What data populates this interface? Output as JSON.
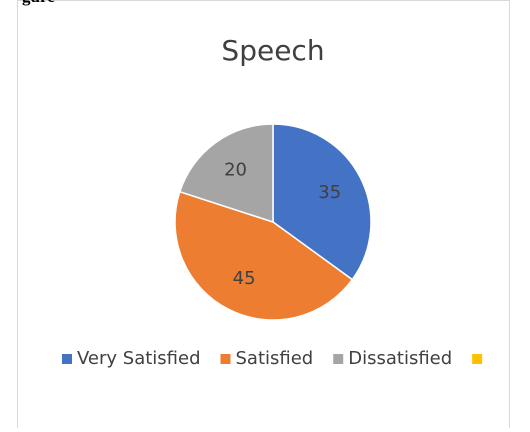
{
  "caption": "gure",
  "chart_data": {
    "type": "pie",
    "title": "Speech",
    "categories": [
      "Very Satisfied",
      "Satisfied",
      "Dissatisfied",
      null
    ],
    "values": [
      35,
      45,
      20,
      null
    ],
    "colors": [
      "#4472c4",
      "#ed7d31",
      "#a5a5a5",
      "#ffc000"
    ],
    "legend": "bottom"
  }
}
